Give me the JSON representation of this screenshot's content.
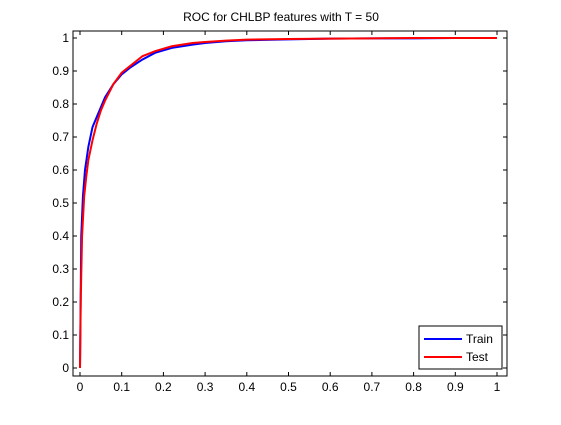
{
  "chart_data": {
    "type": "line",
    "title": "ROC for CHLBP features with T = 50",
    "xlabel": "",
    "ylabel": "",
    "xlim": [
      0,
      1
    ],
    "ylim": [
      0,
      1
    ],
    "xticks": [
      0,
      0.1,
      0.2,
      0.3,
      0.4,
      0.5,
      0.6,
      0.7,
      0.8,
      0.9,
      1
    ],
    "yticks": [
      0,
      0.1,
      0.2,
      0.3,
      0.4,
      0.5,
      0.6,
      0.7,
      0.8,
      0.9,
      1
    ],
    "xtick_labels": [
      "0",
      "0.1",
      "0.2",
      "0.3",
      "0.4",
      "0.5",
      "0.6",
      "0.7",
      "0.8",
      "0.9",
      "1"
    ],
    "ytick_labels": [
      "0",
      "0.1",
      "0.2",
      "0.3",
      "0.4",
      "0.5",
      "0.6",
      "0.7",
      "0.8",
      "0.9",
      "1"
    ],
    "grid": false,
    "legend_position": "bottom-right",
    "series": [
      {
        "name": "Train",
        "color": "#0000ff",
        "x": [
          0,
          0.003,
          0.007,
          0.012,
          0.02,
          0.03,
          0.04,
          0.05,
          0.06,
          0.08,
          0.1,
          0.12,
          0.15,
          0.18,
          0.22,
          0.27,
          0.3,
          0.35,
          0.4,
          0.5,
          0.6,
          0.7,
          0.8,
          0.9,
          1
        ],
        "y": [
          0,
          0.4,
          0.52,
          0.6,
          0.67,
          0.73,
          0.76,
          0.79,
          0.82,
          0.86,
          0.89,
          0.91,
          0.935,
          0.955,
          0.97,
          0.98,
          0.985,
          0.99,
          0.993,
          0.996,
          0.998,
          0.999,
          0.999,
          1,
          1
        ]
      },
      {
        "name": "Test",
        "color": "#ff0000",
        "x": [
          0,
          0.002,
          0.005,
          0.01,
          0.015,
          0.02,
          0.03,
          0.04,
          0.05,
          0.06,
          0.08,
          0.1,
          0.12,
          0.15,
          0.18,
          0.22,
          0.27,
          0.3,
          0.35,
          0.4,
          0.5,
          0.6,
          0.7,
          0.8,
          0.9,
          1
        ],
        "y": [
          0,
          0.22,
          0.4,
          0.52,
          0.58,
          0.63,
          0.69,
          0.74,
          0.78,
          0.81,
          0.86,
          0.895,
          0.915,
          0.945,
          0.96,
          0.975,
          0.985,
          0.988,
          0.992,
          0.995,
          0.997,
          0.998,
          0.999,
          1,
          1,
          1
        ]
      }
    ]
  }
}
